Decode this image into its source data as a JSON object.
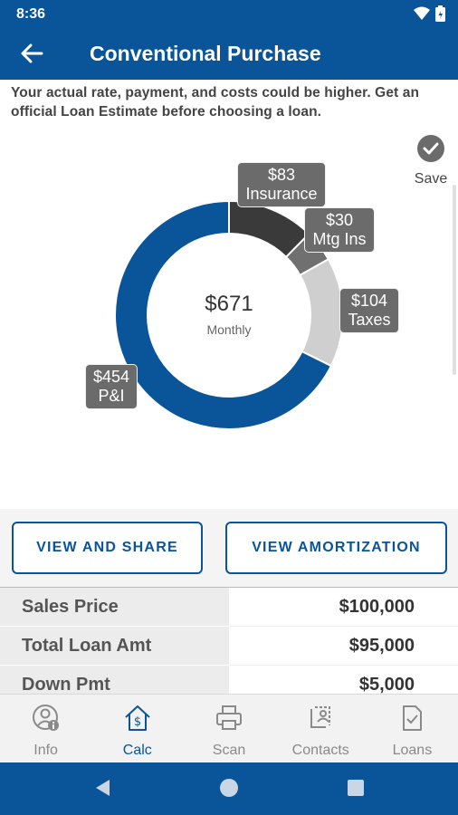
{
  "status_bar": {
    "time": "8:36",
    "icons": [
      "wifi-icon",
      "battery-icon"
    ]
  },
  "app_bar": {
    "title": "Conventional Purchase",
    "back_icon": "arrow-left-icon"
  },
  "disclaimer": "Your actual rate, payment, and costs could be higher. Get an official Loan Estimate before choosing a loan.",
  "save": {
    "label": "Save",
    "icon": "check-circle-icon"
  },
  "chart_data": {
    "type": "pie",
    "center_value": "$671",
    "center_label": "Monthly",
    "slices": [
      {
        "label": "Insurance",
        "value": 83,
        "display": "$83",
        "color": "#3a3a3a"
      },
      {
        "label": "Mtg Ins",
        "value": 30,
        "display": "$30",
        "color": "#707070"
      },
      {
        "label": "Taxes",
        "value": 104,
        "display": "$104",
        "color": "#cfcfcf"
      },
      {
        "label": "P&I",
        "value": 454,
        "display": "$454",
        "color": "#0a5499"
      }
    ]
  },
  "buttons": {
    "view_share": "VIEW AND SHARE",
    "view_amortization": "VIEW AMORTIZATION"
  },
  "summary_rows": [
    {
      "label": "Sales Price",
      "value": "$100,000"
    },
    {
      "label": "Total Loan Amt",
      "value": "$95,000"
    },
    {
      "label": "Down Pmt",
      "value": "$5,000"
    }
  ],
  "tabs": [
    {
      "label": "Info",
      "icon": "user-info-icon",
      "active": false
    },
    {
      "label": "Calc",
      "icon": "house-dollar-icon",
      "active": true
    },
    {
      "label": "Scan",
      "icon": "printer-icon",
      "active": false
    },
    {
      "label": "Contacts",
      "icon": "contacts-icon",
      "active": false
    },
    {
      "label": "Loans",
      "icon": "document-check-icon",
      "active": false
    }
  ],
  "colors": {
    "primary": "#0a5499",
    "label_bg": "#6b6b6b"
  }
}
